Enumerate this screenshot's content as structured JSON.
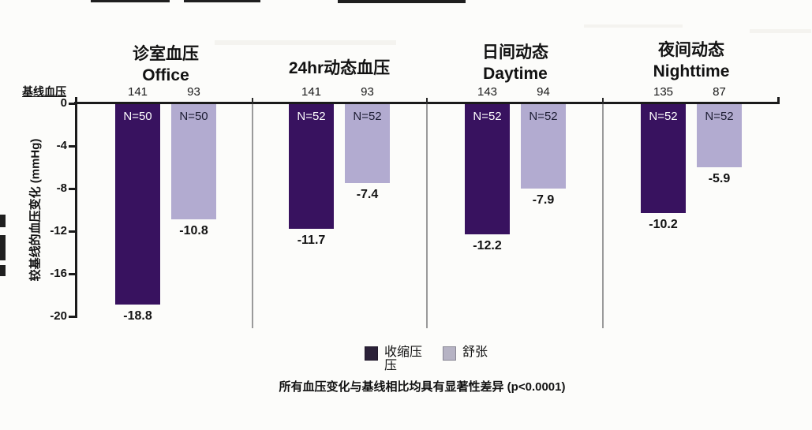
{
  "page": {
    "background": "#fcfcfa"
  },
  "chart_data": {
    "type": "bar",
    "title": "",
    "xlabel": "",
    "ylabel": "较基线的血压变化 (mmHg)",
    "baseline_row_label": "基线血压",
    "ylim": [
      -20,
      0
    ],
    "yticks": [
      0,
      -4,
      -8,
      -12,
      -16,
      -20
    ],
    "grid": false,
    "legend_position": "bottom",
    "series": [
      {
        "key": "systolic",
        "name": "收缩压",
        "color": "#38125f"
      },
      {
        "key": "diastolic",
        "name": "舒张压",
        "color": "#b2abd0"
      }
    ],
    "groups": [
      {
        "title_zh": "诊室血压",
        "title_en": "Office",
        "bars": [
          {
            "series": "systolic",
            "baseline": 141,
            "n_label": "N=50",
            "change": -18.8
          },
          {
            "series": "diastolic",
            "baseline": 93,
            "n_label": "N=50",
            "change": -10.8
          }
        ]
      },
      {
        "title_zh": "24hr动态血压",
        "title_en": "",
        "bars": [
          {
            "series": "systolic",
            "baseline": 141,
            "n_label": "N=52",
            "change": -11.7
          },
          {
            "series": "diastolic",
            "baseline": 93,
            "n_label": "N=52",
            "change": -7.4
          }
        ]
      },
      {
        "title_zh": "日间动态",
        "title_en": "Daytime",
        "bars": [
          {
            "series": "systolic",
            "baseline": 143,
            "n_label": "N=52",
            "change": -12.2
          },
          {
            "series": "diastolic",
            "baseline": 94,
            "n_label": "N=52",
            "change": -7.9
          }
        ]
      },
      {
        "title_zh": "夜间动态",
        "title_en": "Nighttime",
        "bars": [
          {
            "series": "systolic",
            "baseline": 135,
            "n_label": "N=52",
            "change": -10.2
          },
          {
            "series": "diastolic",
            "baseline": 87,
            "n_label": "N=52",
            "change": -5.9
          }
        ]
      }
    ],
    "legend": [
      {
        "label_lines": [
          "收缩压",
          "压"
        ],
        "color": "#2b2138"
      },
      {
        "label_lines": [
          "舒张"
        ],
        "color": "#b6b3c4"
      }
    ],
    "footnote": "所有血压变化与基线相比均具有显著性差异 (p<0.0001)"
  }
}
